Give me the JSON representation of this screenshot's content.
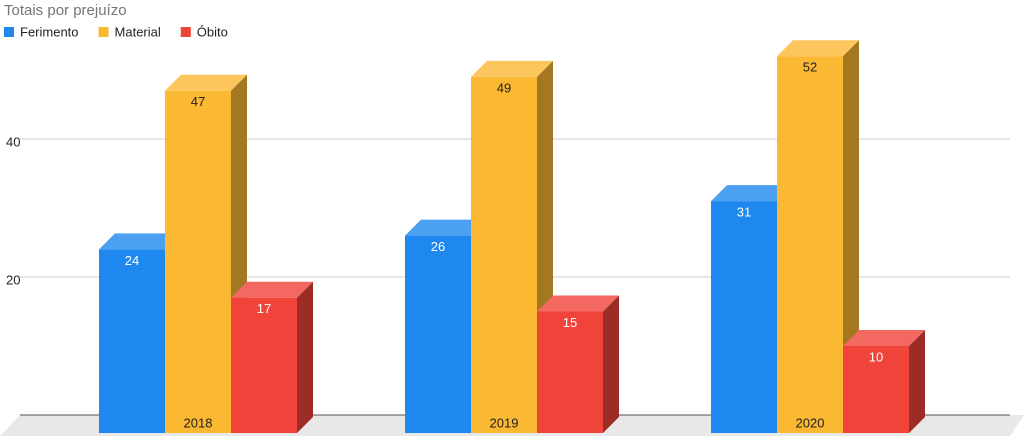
{
  "chart_data": {
    "type": "bar3d",
    "title": "Totais por prejuízo",
    "categories": [
      "2018",
      "2019",
      "2020"
    ],
    "series": [
      {
        "name": "Ferimento",
        "color": "#1e88ee",
        "values": [
          24,
          26,
          31
        ]
      },
      {
        "name": "Material",
        "color": "#fbb833",
        "values": [
          47,
          49,
          52
        ]
      },
      {
        "name": "Óbito",
        "color": "#f0433a",
        "values": [
          17,
          15,
          10
        ]
      }
    ],
    "ylim": [
      0,
      60
    ],
    "yticks": [
      20,
      40
    ],
    "grid": true
  }
}
